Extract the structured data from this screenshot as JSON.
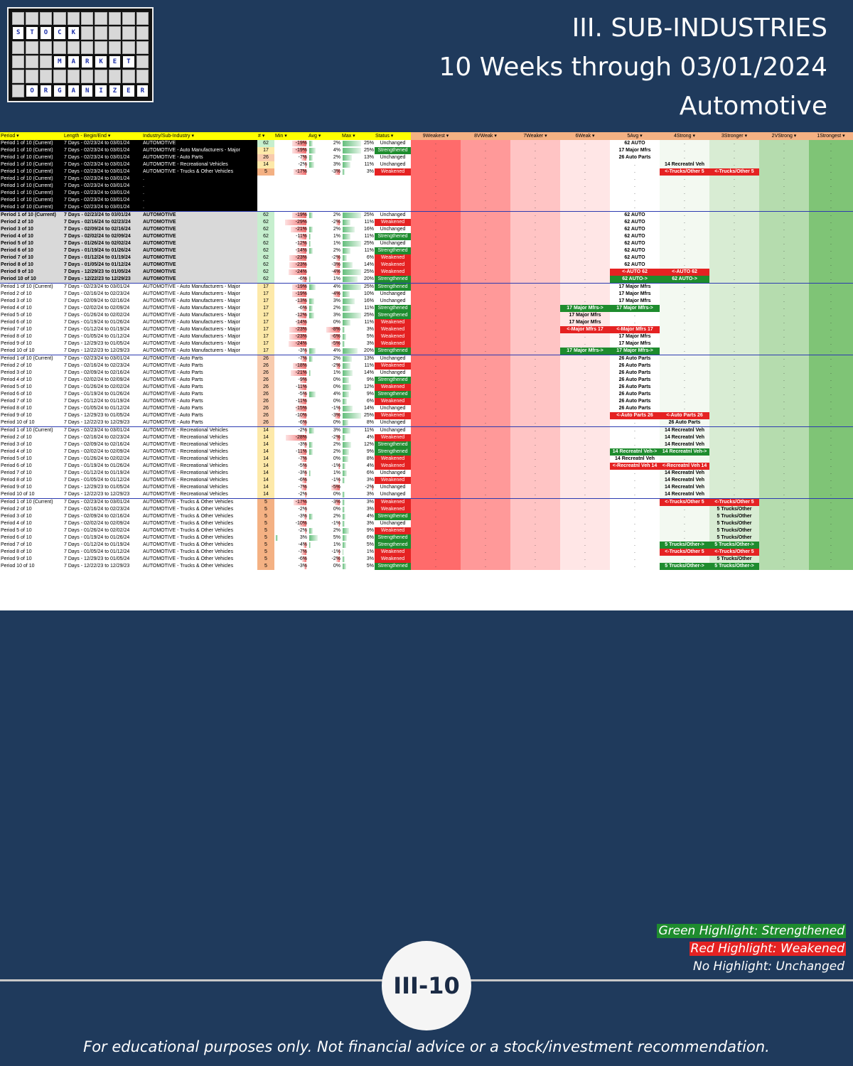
{
  "logo": {
    "rows": [
      [
        "S",
        "T",
        "O",
        "C",
        "K"
      ],
      [
        "M",
        "A",
        "R",
        "K",
        "E",
        "T"
      ],
      [
        "O",
        "R",
        "G",
        "A",
        "N",
        "I",
        "Z",
        "E",
        "R"
      ]
    ]
  },
  "title": {
    "line1": "III. SUB-INDUSTRIES",
    "line2": "10 Weeks through 03/01/2024",
    "line3": "Automotive"
  },
  "headers": [
    "Period",
    "Length - Begin/End",
    "Industry/Sub-Industry",
    "#",
    "Min",
    "Avg",
    "Max",
    "Status",
    "9Weakest",
    "8VWeak",
    "7Weaker",
    "6Weak",
    "5Avg",
    "4Strong",
    "3Stronger",
    "2VStrong",
    "1Strongest"
  ],
  "rows": [
    {
      "p": "Period 1 of 10 (Current)",
      "l": "7 Days - 02/23/24 to 03/01/24",
      "i": "AUTOMOTIVE",
      "n": "62",
      "mn": "-19%",
      "av": "2%",
      "mx": "25%",
      "s": "Unchanged",
      "b": {
        "5": "62 AUTO"
      }
    },
    {
      "p": "Period 1 of 10 (Current)",
      "l": "7 Days - 02/23/24 to 03/01/24",
      "i": "AUTOMOTIVE - Auto Manufacturers - Major",
      "n": "17",
      "mn": "-19%",
      "av": "4%",
      "mx": "25%",
      "s": "Strengthened",
      "b": {
        "5": "17 Major Mfrs"
      }
    },
    {
      "p": "Period 1 of 10 (Current)",
      "l": "7 Days - 02/23/24 to 03/01/24",
      "i": "AUTOMOTIVE - Auto Parts",
      "n": "26",
      "mn": "-7%",
      "av": "2%",
      "mx": "13%",
      "s": "Unchanged",
      "b": {
        "5": "26 Auto Parts"
      }
    },
    {
      "p": "Period 1 of 10 (Current)",
      "l": "7 Days - 02/23/24 to 03/01/24",
      "i": "AUTOMOTIVE - Recreational Vehicles",
      "n": "14",
      "mn": "-2%",
      "av": "3%",
      "mx": "11%",
      "s": "Unchanged",
      "b": {
        "4": "14 Recreatnl Veh"
      }
    },
    {
      "p": "Period 1 of 10 (Current)",
      "l": "7 Days - 02/23/24 to 03/01/24",
      "i": "AUTOMOTIVE - Trucks & Other Vehicles",
      "n": "5",
      "mn": "-17%",
      "av": "-3%",
      "mx": "3%",
      "s": "Weakened",
      "b": {
        "4": "<-Trucks/Other 5",
        "3": "<-Trucks/Other 5"
      },
      "bc": "R"
    },
    {
      "p": "Period 1 of 10 (Current)",
      "l": "7 Days - 02/23/24 to 03/01/24",
      "i": ".",
      "n": "",
      "mn": "",
      "av": "",
      "mx": "",
      "s": "",
      "b": {}
    },
    {
      "p": "Period 1 of 10 (Current)",
      "l": "7 Days - 02/23/24 to 03/01/24",
      "i": ".",
      "n": "",
      "mn": "",
      "av": "",
      "mx": "",
      "s": "",
      "b": {}
    },
    {
      "p": "Period 1 of 10 (Current)",
      "l": "7 Days - 02/23/24 to 03/01/24",
      "i": ".",
      "n": "",
      "mn": "",
      "av": "",
      "mx": "",
      "s": "",
      "b": {}
    },
    {
      "p": "Period 1 of 10 (Current)",
      "l": "7 Days - 02/23/24 to 03/01/24",
      "i": ".",
      "n": "",
      "mn": "",
      "av": "",
      "mx": "",
      "s": "",
      "b": {}
    },
    {
      "p": "Period 1 of 10 (Current)",
      "l": "7 Days - 02/23/24 to 03/01/24",
      "i": ".",
      "n": "",
      "mn": "",
      "av": "",
      "mx": "",
      "s": "",
      "b": {}
    },
    {
      "p": "Period 1 of 10 (Current)",
      "l": "7 Days - 02/23/24 to 03/01/24",
      "i": "AUTOMOTIVE",
      "n": "62",
      "mn": "-19%",
      "av": "2%",
      "mx": "25%",
      "s": "Unchanged",
      "b": {
        "5": "62 AUTO"
      }
    },
    {
      "p": "Period 2 of 10",
      "l": "7 Days - 02/16/24 to 02/23/24",
      "i": "AUTOMOTIVE",
      "n": "62",
      "mn": "-29%",
      "av": "-2%",
      "mx": "11%",
      "s": "Weakened",
      "b": {
        "5": "62 AUTO"
      }
    },
    {
      "p": "Period 3 of 10",
      "l": "7 Days - 02/09/24 to 02/16/24",
      "i": "AUTOMOTIVE",
      "n": "62",
      "mn": "-21%",
      "av": "2%",
      "mx": "16%",
      "s": "Unchanged",
      "b": {
        "5": "62 AUTO"
      }
    },
    {
      "p": "Period 4 of 10",
      "l": "7 Days - 02/02/24 to 02/09/24",
      "i": "AUTOMOTIVE",
      "n": "62",
      "mn": "-11%",
      "av": "1%",
      "mx": "11%",
      "s": "Strengthened",
      "b": {
        "5": "62 AUTO"
      }
    },
    {
      "p": "Period 5 of 10",
      "l": "7 Days - 01/26/24 to 02/02/24",
      "i": "AUTOMOTIVE",
      "n": "62",
      "mn": "-12%",
      "av": "1%",
      "mx": "25%",
      "s": "Unchanged",
      "b": {
        "5": "62 AUTO"
      }
    },
    {
      "p": "Period 6 of 10",
      "l": "7 Days - 01/19/24 to 01/26/24",
      "i": "AUTOMOTIVE",
      "n": "62",
      "mn": "-14%",
      "av": "2%",
      "mx": "11%",
      "s": "Strengthened",
      "b": {
        "5": "62 AUTO"
      }
    },
    {
      "p": "Period 7 of 10",
      "l": "7 Days - 01/12/24 to 01/19/24",
      "i": "AUTOMOTIVE",
      "n": "62",
      "mn": "-23%",
      "av": "-2%",
      "mx": "6%",
      "s": "Weakened",
      "b": {
        "5": "62 AUTO"
      }
    },
    {
      "p": "Period 8 of 10",
      "l": "7 Days - 01/05/24 to 01/12/24",
      "i": "AUTOMOTIVE",
      "n": "62",
      "mn": "-23%",
      "av": "-3%",
      "mx": "14%",
      "s": "Weakened",
      "b": {
        "5": "62 AUTO"
      }
    },
    {
      "p": "Period 9 of 10",
      "l": "7 Days - 12/29/23 to 01/05/24",
      "i": "AUTOMOTIVE",
      "n": "62",
      "mn": "-24%",
      "av": "-4%",
      "mx": "25%",
      "s": "Weakened",
      "b": {
        "5": "<-AUTO 62",
        "4": "<-AUTO 62"
      },
      "bc": "R"
    },
    {
      "p": "Period 10 of 10",
      "l": "7 Days - 12/22/23 to 12/29/23",
      "i": "AUTOMOTIVE",
      "n": "62",
      "mn": "-6%",
      "av": "1%",
      "mx": "20%",
      "s": "Strengthened",
      "b": {
        "5": "62 AUTO->",
        "4": "62 AUTO->"
      },
      "bc": "G"
    },
    {
      "p": "Period 1 of 10 (Current)",
      "l": "7 Days - 02/23/24 to 03/01/24",
      "i": "AUTOMOTIVE - Auto Manufacturers - Major",
      "n": "17",
      "mn": "-19%",
      "av": "4%",
      "mx": "25%",
      "s": "Strengthened",
      "b": {
        "5": "17 Major Mfrs"
      }
    },
    {
      "p": "Period 2 of 10",
      "l": "7 Days - 02/16/24 to 02/23/24",
      "i": "AUTOMOTIVE - Auto Manufacturers - Major",
      "n": "17",
      "mn": "-19%",
      "av": "-4%",
      "mx": "10%",
      "s": "Unchanged",
      "b": {
        "5": "17 Major Mfrs"
      }
    },
    {
      "p": "Period 3 of 10",
      "l": "7 Days - 02/09/24 to 02/16/24",
      "i": "AUTOMOTIVE - Auto Manufacturers - Major",
      "n": "17",
      "mn": "-13%",
      "av": "3%",
      "mx": "16%",
      "s": "Unchanged",
      "b": {
        "5": "17 Major Mfrs"
      }
    },
    {
      "p": "Period 4 of 10",
      "l": "7 Days - 02/02/24 to 02/09/24",
      "i": "AUTOMOTIVE - Auto Manufacturers - Major",
      "n": "17",
      "mn": "-6%",
      "av": "2%",
      "mx": "11%",
      "s": "Strengthened",
      "b": {
        "6": "17 Major Mfrs->",
        "5": "17 Major Mfrs->"
      },
      "bc": "G"
    },
    {
      "p": "Period 5 of 10",
      "l": "7 Days - 01/26/24 to 02/02/24",
      "i": "AUTOMOTIVE - Auto Manufacturers - Major",
      "n": "17",
      "mn": "-12%",
      "av": "3%",
      "mx": "25%",
      "s": "Strengthened",
      "b": {
        "6": "17 Major Mfrs"
      }
    },
    {
      "p": "Period 6 of 10",
      "l": "7 Days - 01/19/24 to 01/26/24",
      "i": "AUTOMOTIVE - Auto Manufacturers - Major",
      "n": "17",
      "mn": "-14%",
      "av": "0%",
      "mx": "11%",
      "s": "Weakened",
      "b": {
        "6": "17 Major Mfrs"
      }
    },
    {
      "p": "Period 7 of 10",
      "l": "7 Days - 01/12/24 to 01/19/24",
      "i": "AUTOMOTIVE - Auto Manufacturers - Major",
      "n": "17",
      "mn": "-23%",
      "av": "-8%",
      "mx": "3%",
      "s": "Weakened",
      "b": {
        "6": "<-Major Mfrs 17",
        "5": "<-Major Mfrs 17"
      },
      "bc": "R"
    },
    {
      "p": "Period 8 of 10",
      "l": "7 Days - 01/05/24 to 01/12/24",
      "i": "AUTOMOTIVE - Auto Manufacturers - Major",
      "n": "17",
      "mn": "-23%",
      "av": "-6%",
      "mx": "5%",
      "s": "Weakened",
      "b": {
        "5": "17 Major Mfrs"
      }
    },
    {
      "p": "Period 9 of 10",
      "l": "7 Days - 12/29/23 to 01/05/24",
      "i": "AUTOMOTIVE - Auto Manufacturers - Major",
      "n": "17",
      "mn": "-24%",
      "av": "-5%",
      "mx": "3%",
      "s": "Weakened",
      "b": {
        "5": "17 Major Mfrs"
      }
    },
    {
      "p": "Period 10 of 10",
      "l": "7 Days - 12/22/23 to 12/29/23",
      "i": "AUTOMOTIVE - Auto Manufacturers - Major",
      "n": "17",
      "mn": "-3%",
      "av": "4%",
      "mx": "20%",
      "s": "Strengthened",
      "b": {
        "6": "17 Major Mfrs->",
        "5": "17 Major Mfrs->"
      },
      "bc": "G"
    },
    {
      "p": "Period 1 of 10 (Current)",
      "l": "7 Days - 02/23/24 to 03/01/24",
      "i": "AUTOMOTIVE - Auto Parts",
      "n": "26",
      "mn": "-7%",
      "av": "2%",
      "mx": "13%",
      "s": "Unchanged",
      "b": {
        "5": "26 Auto Parts"
      }
    },
    {
      "p": "Period 2 of 10",
      "l": "7 Days - 02/16/24 to 02/23/24",
      "i": "AUTOMOTIVE - Auto Parts",
      "n": "26",
      "mn": "-18%",
      "av": "-2%",
      "mx": "11%",
      "s": "Weakened",
      "b": {
        "5": "26 Auto Parts"
      }
    },
    {
      "p": "Period 3 of 10",
      "l": "7 Days - 02/09/24 to 02/16/24",
      "i": "AUTOMOTIVE - Auto Parts",
      "n": "26",
      "mn": "-21%",
      "av": "1%",
      "mx": "14%",
      "s": "Unchanged",
      "b": {
        "5": "26 Auto Parts"
      }
    },
    {
      "p": "Period 4 of 10",
      "l": "7 Days - 02/02/24 to 02/09/24",
      "i": "AUTOMOTIVE - Auto Parts",
      "n": "26",
      "mn": "-9%",
      "av": "0%",
      "mx": "9%",
      "s": "Strengthened",
      "b": {
        "5": "26 Auto Parts"
      }
    },
    {
      "p": "Period 5 of 10",
      "l": "7 Days - 01/26/24 to 02/02/24",
      "i": "AUTOMOTIVE - Auto Parts",
      "n": "26",
      "mn": "-11%",
      "av": "0%",
      "mx": "12%",
      "s": "Weakened",
      "b": {
        "5": "26 Auto Parts"
      }
    },
    {
      "p": "Period 6 of 10",
      "l": "7 Days - 01/19/24 to 01/26/24",
      "i": "AUTOMOTIVE - Auto Parts",
      "n": "26",
      "mn": "-5%",
      "av": "4%",
      "mx": "9%",
      "s": "Strengthened",
      "b": {
        "5": "26 Auto Parts"
      }
    },
    {
      "p": "Period 7 of 10",
      "l": "7 Days - 01/12/24 to 01/19/24",
      "i": "AUTOMOTIVE - Auto Parts",
      "n": "26",
      "mn": "-11%",
      "av": "0%",
      "mx": "6%",
      "s": "Weakened",
      "b": {
        "5": "26 Auto Parts"
      }
    },
    {
      "p": "Period 8 of 10",
      "l": "7 Days - 01/05/24 to 01/12/24",
      "i": "AUTOMOTIVE - Auto Parts",
      "n": "26",
      "mn": "-15%",
      "av": "-1%",
      "mx": "14%",
      "s": "Unchanged",
      "b": {
        "5": "26 Auto Parts"
      }
    },
    {
      "p": "Period 9 of 10",
      "l": "7 Days - 12/29/23 to 01/05/24",
      "i": "AUTOMOTIVE - Auto Parts",
      "n": "26",
      "mn": "-10%",
      "av": "-3%",
      "mx": "25%",
      "s": "Weakened",
      "b": {
        "5": "<-Auto Parts 26",
        "4": "<-Auto Parts 26"
      },
      "bc": "R"
    },
    {
      "p": "Period 10 of 10",
      "l": "7 Days - 12/22/23 to 12/29/23",
      "i": "AUTOMOTIVE - Auto Parts",
      "n": "26",
      "mn": "-6%",
      "av": "0%",
      "mx": "8%",
      "s": "Unchanged",
      "b": {
        "4": "26 Auto Parts"
      }
    },
    {
      "p": "Period 1 of 10 (Current)",
      "l": "7 Days - 02/23/24 to 03/01/24",
      "i": "AUTOMOTIVE - Recreational Vehicles",
      "n": "14",
      "mn": "-2%",
      "av": "3%",
      "mx": "11%",
      "s": "Unchanged",
      "b": {
        "4": "14 Recreatnl Veh"
      }
    },
    {
      "p": "Period 2 of 10",
      "l": "7 Days - 02/16/24 to 02/23/24",
      "i": "AUTOMOTIVE - Recreational Vehicles",
      "n": "14",
      "mn": "-28%",
      "av": "-2%",
      "mx": "4%",
      "s": "Weakened",
      "b": {
        "4": "14 Recreatnl Veh"
      }
    },
    {
      "p": "Period 3 of 10",
      "l": "7 Days - 02/09/24 to 02/16/24",
      "i": "AUTOMOTIVE - Recreational Vehicles",
      "n": "14",
      "mn": "-3%",
      "av": "2%",
      "mx": "12%",
      "s": "Strengthened",
      "b": {
        "4": "14 Recreatnl Veh"
      }
    },
    {
      "p": "Period 4 of 10",
      "l": "7 Days - 02/02/24 to 02/09/24",
      "i": "AUTOMOTIVE - Recreational Vehicles",
      "n": "14",
      "mn": "-11%",
      "av": "2%",
      "mx": "9%",
      "s": "Strengthened",
      "b": {
        "5": "14 Recreatnl Veh->",
        "4": "14 Recreatnl Veh->"
      },
      "bc": "G"
    },
    {
      "p": "Period 5 of 10",
      "l": "7 Days - 01/26/24 to 02/02/24",
      "i": "AUTOMOTIVE - Recreational Vehicles",
      "n": "14",
      "mn": "-7%",
      "av": "0%",
      "mx": "8%",
      "s": "Weakened",
      "b": {
        "5": "14 Recreatnl Veh"
      }
    },
    {
      "p": "Period 6 of 10",
      "l": "7 Days - 01/19/24 to 01/26/24",
      "i": "AUTOMOTIVE - Recreational Vehicles",
      "n": "14",
      "mn": "-5%",
      "av": "-1%",
      "mx": "4%",
      "s": "Weakened",
      "b": {
        "5": "<-Recreatnl Veh 14",
        "4": "<-Recreatnl Veh 14"
      },
      "bc": "R"
    },
    {
      "p": "Period 7 of 10",
      "l": "7 Days - 01/12/24 to 01/19/24",
      "i": "AUTOMOTIVE - Recreational Vehicles",
      "n": "14",
      "mn": "-3%",
      "av": "1%",
      "mx": "6%",
      "s": "Unchanged",
      "b": {
        "4": "14 Recreatnl Veh"
      }
    },
    {
      "p": "Period 8 of 10",
      "l": "7 Days - 01/05/24 to 01/12/24",
      "i": "AUTOMOTIVE - Recreational Vehicles",
      "n": "14",
      "mn": "-6%",
      "av": "-1%",
      "mx": "3%",
      "s": "Weakened",
      "b": {
        "4": "14 Recreatnl Veh"
      }
    },
    {
      "p": "Period 9 of 10",
      "l": "7 Days - 12/29/23 to 01/05/24",
      "i": "AUTOMOTIVE - Recreational Vehicles",
      "n": "14",
      "mn": "-7%",
      "av": "-5%",
      "mx": "-2%",
      "s": "Unchanged",
      "b": {
        "4": "14 Recreatnl Veh"
      }
    },
    {
      "p": "Period 10 of 10",
      "l": "7 Days - 12/22/23 to 12/29/23",
      "i": "AUTOMOTIVE - Recreational Vehicles",
      "n": "14",
      "mn": "-2%",
      "av": "0%",
      "mx": "3%",
      "s": "Unchanged",
      "b": {
        "4": "14 Recreatnl Veh"
      }
    },
    {
      "p": "Period 1 of 10 (Current)",
      "l": "7 Days - 02/23/24 to 03/01/24",
      "i": "AUTOMOTIVE - Trucks & Other Vehicles",
      "n": "5",
      "mn": "-17%",
      "av": "-3%",
      "mx": "3%",
      "s": "Weakened",
      "b": {
        "4": "<-Trucks/Other 5",
        "3": "<-Trucks/Other 5"
      },
      "bc": "R"
    },
    {
      "p": "Period 2 of 10",
      "l": "7 Days - 02/16/24 to 02/23/24",
      "i": "AUTOMOTIVE - Trucks & Other Vehicles",
      "n": "5",
      "mn": "-2%",
      "av": "0%",
      "mx": "3%",
      "s": "Weakened",
      "b": {
        "3": "5 Trucks/Other"
      }
    },
    {
      "p": "Period 3 of 10",
      "l": "7 Days - 02/09/24 to 02/16/24",
      "i": "AUTOMOTIVE - Trucks & Other Vehicles",
      "n": "5",
      "mn": "-3%",
      "av": "2%",
      "mx": "4%",
      "s": "Strengthened",
      "b": {
        "3": "5 Trucks/Other"
      }
    },
    {
      "p": "Period 4 of 10",
      "l": "7 Days - 02/02/24 to 02/09/24",
      "i": "AUTOMOTIVE - Trucks & Other Vehicles",
      "n": "5",
      "mn": "-10%",
      "av": "-1%",
      "mx": "3%",
      "s": "Unchanged",
      "b": {
        "3": "5 Trucks/Other"
      }
    },
    {
      "p": "Period 5 of 10",
      "l": "7 Days - 01/26/24 to 02/02/24",
      "i": "AUTOMOTIVE - Trucks & Other Vehicles",
      "n": "5",
      "mn": "-2%",
      "av": "2%",
      "mx": "9%",
      "s": "Weakened",
      "b": {
        "3": "5 Trucks/Other"
      }
    },
    {
      "p": "Period 6 of 10",
      "l": "7 Days - 01/19/24 to 01/26/24",
      "i": "AUTOMOTIVE - Trucks & Other Vehicles",
      "n": "5",
      "mn": "3%",
      "av": "5%",
      "mx": "6%",
      "s": "Strengthened",
      "b": {
        "3": "5 Trucks/Other"
      }
    },
    {
      "p": "Period 7 of 10",
      "l": "7 Days - 01/12/24 to 01/19/24",
      "i": "AUTOMOTIVE - Trucks & Other Vehicles",
      "n": "5",
      "mn": "-4%",
      "av": "1%",
      "mx": "5%",
      "s": "Strengthened",
      "b": {
        "4": "5 Trucks/Other->",
        "3": "5 Trucks/Other->"
      },
      "bc": "G"
    },
    {
      "p": "Period 8 of 10",
      "l": "7 Days - 01/05/24 to 01/12/24",
      "i": "AUTOMOTIVE - Trucks & Other Vehicles",
      "n": "5",
      "mn": "-7%",
      "av": "-1%",
      "mx": "1%",
      "s": "Weakened",
      "b": {
        "4": "<-Trucks/Other 5",
        "3": "<-Trucks/Other 5"
      },
      "bc": "R"
    },
    {
      "p": "Period 9 of 10",
      "l": "7 Days - 12/29/23 to 01/05/24",
      "i": "AUTOMOTIVE - Trucks & Other Vehicles",
      "n": "5",
      "mn": "-6%",
      "av": "-2%",
      "mx": "3%",
      "s": "Weakened",
      "b": {
        "3": "5 Trucks/Other"
      }
    },
    {
      "p": "Period 10 of 10",
      "l": "7 Days - 12/22/23 to 12/29/23",
      "i": "AUTOMOTIVE - Trucks & Other Vehicles",
      "n": "5",
      "mn": "-3%",
      "av": "0%",
      "mx": "5%",
      "s": "Strengthened",
      "b": {
        "4": "5 Trucks/Other->",
        "3": "5 Trucks/Other->"
      },
      "bc": "G"
    }
  ],
  "legend": {
    "green": "Green Highlight: Strengthened",
    "red": "Red Highlight: Weakened",
    "none": "No Highlight: Unchanged"
  },
  "page_number": "III-10",
  "footer": "For educational purposes only. Not financial advice or a stock/investment recommendation.",
  "colors": {
    "background": "#1f3a5c",
    "strengthened": "#1e8c2e",
    "weakened": "#e52222",
    "header": "#ffff00"
  }
}
